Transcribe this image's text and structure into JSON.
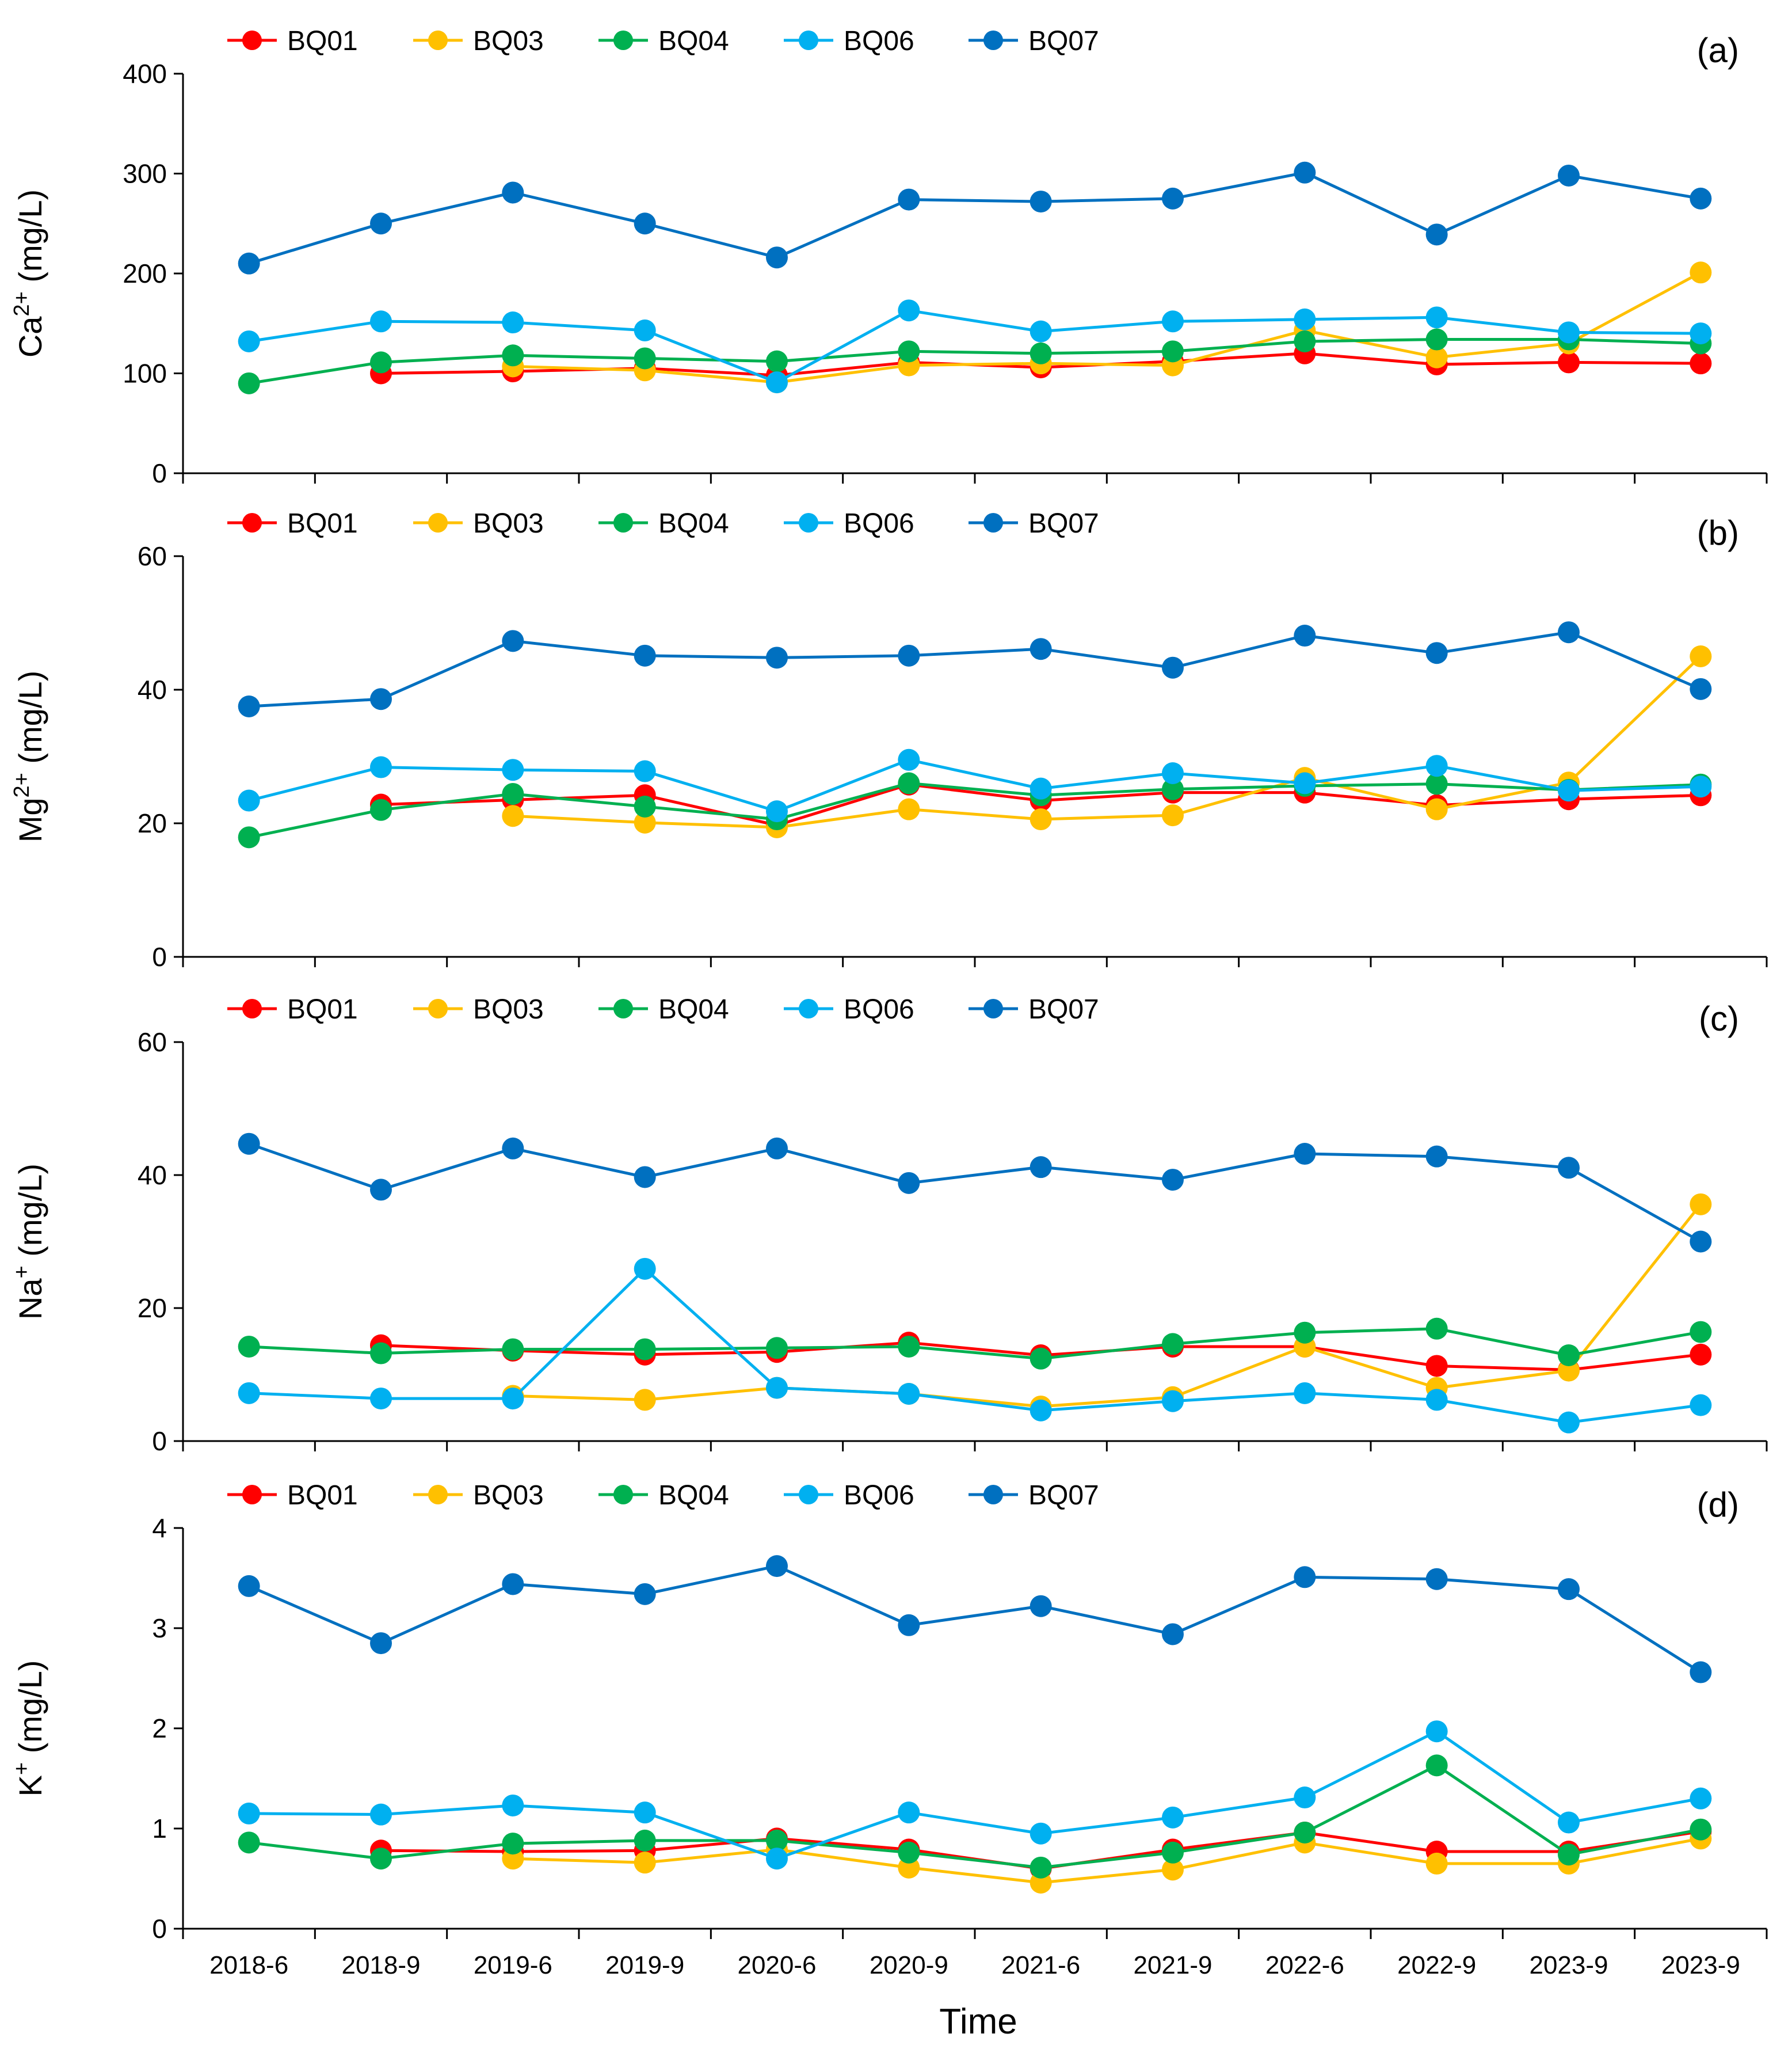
{
  "chart_data": {
    "type": "line",
    "figure_xlabel": "Time",
    "categories": [
      "2018-6",
      "2018-9",
      "2019-6",
      "2019-9",
      "2020-6",
      "2020-9",
      "2021-6",
      "2021-9",
      "2022-6",
      "2022-9",
      "2023-9",
      "2023-9"
    ],
    "series_colors": {
      "BQ01": "#FF0000",
      "BQ03": "#FFC000",
      "BQ04": "#00B050",
      "BQ06": "#00B0F0",
      "BQ07": "#0070C0"
    },
    "panels": [
      {
        "label": "(a)",
        "ylabel_base": "Ca",
        "ylabel_sup": "2+",
        "ylabel_unit": " (mg/L)",
        "ylim": [
          0,
          400
        ],
        "yticks": [
          0,
          100,
          200,
          300,
          400
        ],
        "legend": "top-left",
        "series": [
          {
            "name": "BQ01",
            "values": [
              null,
              100,
              102,
              105,
              98,
              111,
              106,
              112,
              120,
              109,
              111,
              110
            ]
          },
          {
            "name": "BQ03",
            "values": [
              null,
              null,
              107,
              103,
              91,
              108,
              110,
              108,
              143,
              116,
              130,
              201
            ]
          },
          {
            "name": "BQ04",
            "values": [
              90,
              111,
              118,
              115,
              112,
              122,
              120,
              122,
              132,
              134,
              134,
              130
            ]
          },
          {
            "name": "BQ06",
            "values": [
              132,
              152,
              151,
              143,
              91,
              163,
              142,
              152,
              154,
              156,
              141,
              140
            ]
          },
          {
            "name": "BQ07",
            "values": [
              210,
              250,
              281,
              250,
              216,
              274,
              272,
              275,
              301,
              239,
              298,
              275
            ]
          }
        ]
      },
      {
        "label": "(b)",
        "ylabel_base": "Mg",
        "ylabel_sup": "2+",
        "ylabel_unit": " (mg/L)",
        "ylim": [
          0,
          60
        ],
        "yticks": [
          0,
          20,
          40,
          60
        ],
        "legend": "top-left",
        "series": [
          {
            "name": "BQ01",
            "values": [
              null,
              22.8,
              23.5,
              24.2,
              19.7,
              25.8,
              23.4,
              24.6,
              24.6,
              22.7,
              23.6,
              24.2
            ]
          },
          {
            "name": "BQ03",
            "values": [
              null,
              null,
              21.1,
              20.1,
              19.4,
              22.1,
              20.6,
              21.2,
              26.8,
              22.1,
              26.1,
              45.0
            ]
          },
          {
            "name": "BQ04",
            "values": [
              17.9,
              22.0,
              24.4,
              22.5,
              20.6,
              26.0,
              24.2,
              25.1,
              25.6,
              25.9,
              25.0,
              25.8
            ]
          },
          {
            "name": "BQ06",
            "values": [
              23.4,
              28.4,
              28.0,
              27.8,
              21.8,
              29.5,
              25.2,
              27.5,
              26.0,
              28.6,
              24.9,
              25.5
            ]
          },
          {
            "name": "BQ07",
            "values": [
              37.5,
              38.6,
              47.3,
              45.1,
              44.8,
              45.1,
              46.1,
              43.3,
              48.1,
              45.5,
              48.6,
              40.1
            ]
          }
        ]
      },
      {
        "label": "(c)",
        "ylabel_base": "Na",
        "ylabel_sup": "+",
        "ylabel_unit": " (mg/L)",
        "ylim": [
          0,
          60
        ],
        "yticks": [
          0,
          20,
          40,
          60
        ],
        "legend": "top-left",
        "series": [
          {
            "name": "BQ01",
            "values": [
              null,
              14.4,
              13.6,
              13.0,
              13.4,
              14.8,
              12.9,
              14.2,
              14.2,
              11.3,
              10.7,
              13.0
            ]
          },
          {
            "name": "BQ03",
            "values": [
              null,
              null,
              6.8,
              6.2,
              8.0,
              7.1,
              5.2,
              6.6,
              14.2,
              8.0,
              10.6,
              35.6
            ]
          },
          {
            "name": "BQ04",
            "values": [
              14.2,
              13.2,
              13.8,
              13.8,
              14.0,
              14.2,
              12.4,
              14.6,
              16.3,
              16.9,
              12.9,
              16.4
            ]
          },
          {
            "name": "BQ06",
            "values": [
              7.2,
              6.4,
              6.4,
              25.9,
              8.0,
              7.1,
              4.6,
              6.0,
              7.2,
              6.2,
              2.8,
              5.4
            ]
          },
          {
            "name": "BQ07",
            "values": [
              44.7,
              37.8,
              44.0,
              39.7,
              44.0,
              38.8,
              41.2,
              39.3,
              43.2,
              42.8,
              41.1,
              30.0
            ]
          }
        ]
      },
      {
        "label": "(d)",
        "ylabel_base": "K",
        "ylabel_sup": "+",
        "ylabel_unit": " (mg/L)",
        "ylim": [
          0,
          4
        ],
        "yticks": [
          0,
          1,
          2,
          3,
          4
        ],
        "legend": "top-left",
        "series": [
          {
            "name": "BQ01",
            "values": [
              null,
              0.78,
              0.77,
              0.78,
              0.9,
              0.79,
              0.6,
              0.79,
              0.96,
              0.77,
              0.77,
              0.97
            ]
          },
          {
            "name": "BQ03",
            "values": [
              null,
              null,
              0.7,
              0.66,
              0.79,
              0.61,
              0.46,
              0.59,
              0.86,
              0.65,
              0.65,
              0.9
            ]
          },
          {
            "name": "BQ04",
            "values": [
              0.86,
              0.7,
              0.85,
              0.88,
              0.88,
              0.76,
              0.61,
              0.76,
              0.96,
              1.63,
              0.74,
              0.99
            ]
          },
          {
            "name": "BQ06",
            "values": [
              1.15,
              1.14,
              1.23,
              1.16,
              0.7,
              1.16,
              0.95,
              1.11,
              1.31,
              1.97,
              1.06,
              1.3
            ]
          },
          {
            "name": "BQ07",
            "values": [
              3.42,
              2.85,
              3.44,
              3.34,
              3.62,
              3.03,
              3.22,
              2.94,
              3.51,
              3.49,
              3.39,
              2.56
            ]
          }
        ]
      }
    ]
  }
}
